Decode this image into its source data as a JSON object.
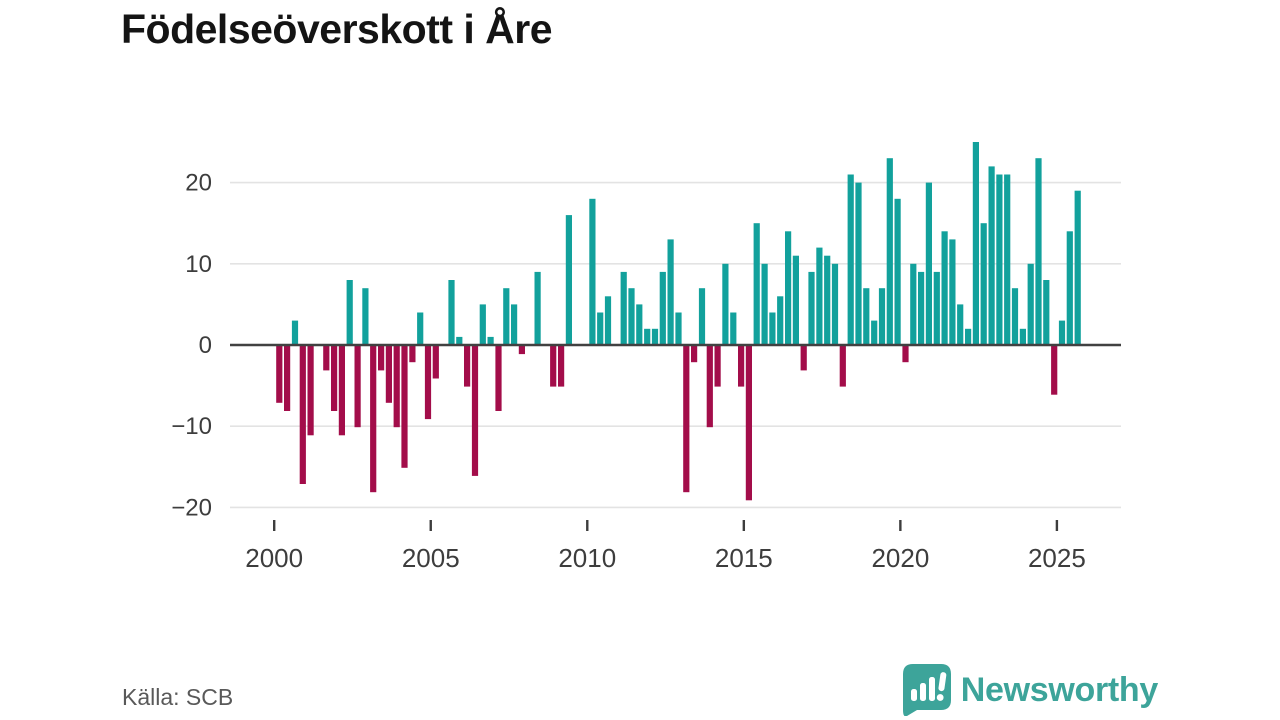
{
  "header": {
    "title": "Födelseöverskott i Åre"
  },
  "footer": {
    "source": "Källa: SCB",
    "brand": "Newsworthy"
  },
  "colors": {
    "positive_bar": "#12a19c",
    "negative_bar": "#a30d4a",
    "zero_line": "#414141",
    "gridline": "#e3e3e3",
    "axis_text": "#3d3d3d",
    "title_text": "#141414",
    "source_text": "#595959",
    "brand_teal": "#3da49a"
  },
  "chart_data": {
    "type": "bar",
    "title": "Födelseöverskott i Åre",
    "period": "quarterly",
    "start_year": 2000,
    "start_quarter": 1,
    "values": [
      -7,
      -8,
      3,
      -17,
      -11,
      0,
      -3,
      -8,
      -11,
      8,
      -10,
      7,
      -18,
      -3,
      -7,
      -10,
      -15,
      -2,
      4,
      -9,
      -4,
      0,
      8,
      1,
      -5,
      -16,
      5,
      1,
      -8,
      7,
      5,
      -1,
      0,
      9,
      0,
      -5,
      -5,
      16,
      0,
      0,
      18,
      4,
      6,
      0,
      9,
      7,
      5,
      2,
      2,
      9,
      13,
      4,
      -18,
      -2,
      7,
      -10,
      -5,
      10,
      4,
      -5,
      -19,
      15,
      10,
      4,
      6,
      14,
      11,
      -3,
      9,
      12,
      11,
      10,
      -5,
      21,
      20,
      7,
      3,
      7,
      23,
      18,
      -2,
      10,
      9,
      20,
      9,
      14,
      13,
      5,
      2,
      25,
      15,
      22,
      21,
      21,
      7,
      2,
      10,
      23,
      8,
      -6,
      3,
      14,
      19
    ],
    "y_ticks": [
      20,
      10,
      0,
      -10,
      -20
    ],
    "x_ticks": [
      2000,
      2005,
      2010,
      2015,
      2020,
      2025
    ],
    "ylim": [
      -20,
      25
    ],
    "grid": true,
    "legend": false,
    "xlabel": "",
    "ylabel": ""
  }
}
